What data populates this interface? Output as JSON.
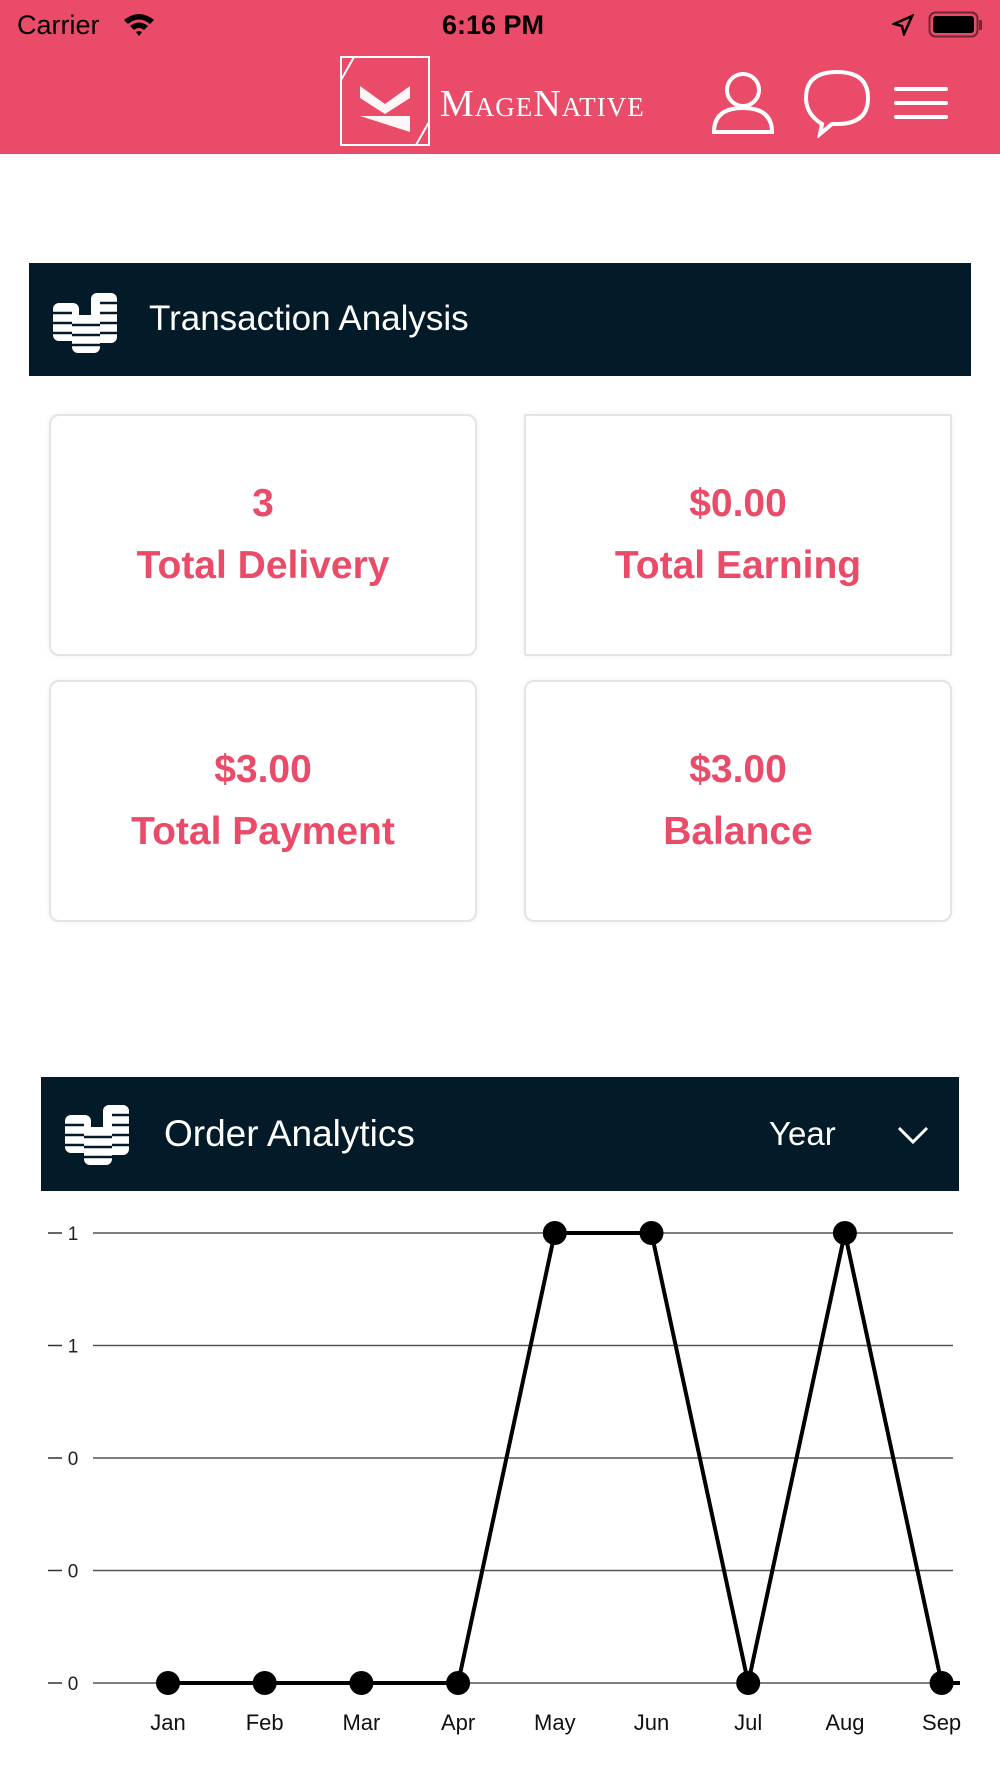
{
  "status_bar": {
    "carrier": "Carrier",
    "time": "6:16 PM"
  },
  "header": {
    "logo_text": "MageNative",
    "icons": [
      "user-icon",
      "chat-icon",
      "menu-icon"
    ]
  },
  "colors": {
    "brand": "#E94B68",
    "section_header": "#031B28"
  },
  "transaction": {
    "title": "Transaction Analysis",
    "cards": [
      {
        "value": "3",
        "label": "Total Delivery"
      },
      {
        "value": "$0.00",
        "label": "Total Earning"
      },
      {
        "value": "$3.00",
        "label": "Total Payment"
      },
      {
        "value": "$3.00",
        "label": "Balance"
      }
    ]
  },
  "orders": {
    "title": "Order Analytics",
    "period": "Year"
  },
  "chart_data": {
    "type": "line",
    "categories": [
      "Jan",
      "Feb",
      "Mar",
      "Apr",
      "May",
      "Jun",
      "Jul",
      "Aug",
      "Sep"
    ],
    "values": [
      0,
      0,
      0,
      0,
      1,
      1,
      0,
      1,
      0
    ],
    "ytick_labels": [
      "1",
      "1",
      "0",
      "0",
      "0"
    ],
    "ylim": [
      0,
      1
    ],
    "grid": true
  }
}
